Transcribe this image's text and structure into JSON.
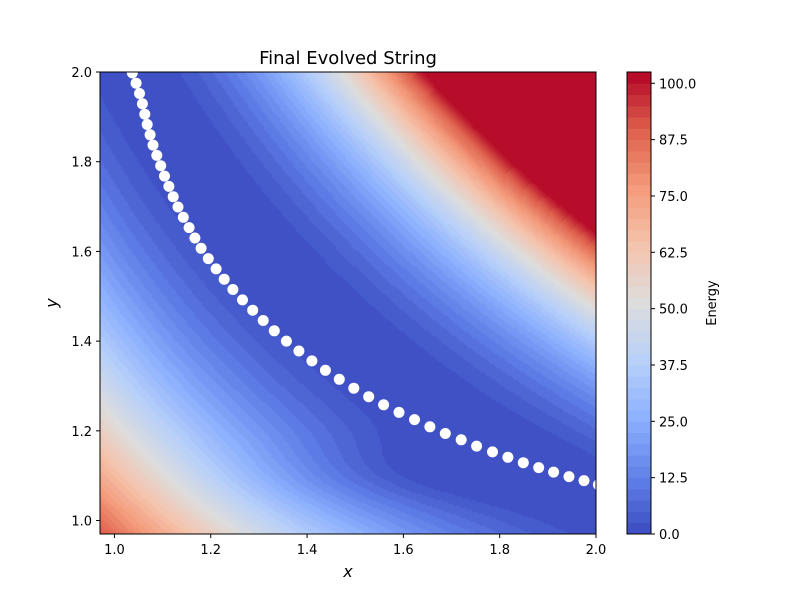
{
  "chart_data": {
    "type": "contour",
    "title": "Final Evolved String",
    "xlabel": "x",
    "ylabel": "y",
    "xlim": [
      0.97,
      2.0
    ],
    "ylim": [
      0.97,
      2.0
    ],
    "x_ticks": [
      "1.0",
      "1.2",
      "1.4",
      "1.6",
      "1.8",
      "2.0"
    ],
    "y_ticks": [
      "1.0",
      "1.2",
      "1.4",
      "1.6",
      "1.8",
      "2.0"
    ],
    "colorbar": {
      "label": "Energy",
      "colormap": "coolwarm",
      "range": [
        0,
        102.5
      ],
      "levels": 41,
      "ticks": [
        "0.0",
        "12.5",
        "25.0",
        "37.5",
        "50.0",
        "62.5",
        "75.0",
        "87.5",
        "100.0"
      ]
    },
    "string_points": {
      "count": 50,
      "color": "#ffffff",
      "x": [
        1.037,
        1.045,
        1.052,
        1.058,
        1.063,
        1.068,
        1.074,
        1.08,
        1.088,
        1.096,
        1.104,
        1.113,
        1.122,
        1.132,
        1.143,
        1.155,
        1.167,
        1.18,
        1.195,
        1.211,
        1.228,
        1.246,
        1.266,
        1.287,
        1.309,
        1.332,
        1.357,
        1.383,
        1.41,
        1.438,
        1.467,
        1.497,
        1.528,
        1.559,
        1.591,
        1.623,
        1.655,
        1.687,
        1.72,
        1.752,
        1.785,
        1.817,
        1.849,
        1.881,
        1.912,
        1.944,
        1.975,
        2.005,
        2.035,
        2.065
      ],
      "y": [
        1.998,
        1.975,
        1.952,
        1.929,
        1.906,
        1.883,
        1.86,
        1.837,
        1.814,
        1.791,
        1.768,
        1.745,
        1.722,
        1.699,
        1.676,
        1.653,
        1.63,
        1.607,
        1.584,
        1.561,
        1.538,
        1.515,
        1.492,
        1.469,
        1.446,
        1.423,
        1.4,
        1.378,
        1.356,
        1.335,
        1.315,
        1.295,
        1.276,
        1.258,
        1.241,
        1.225,
        1.209,
        1.194,
        1.18,
        1.166,
        1.153,
        1.141,
        1.129,
        1.118,
        1.108,
        1.098,
        1.089,
        1.08,
        1.072,
        1.065
      ]
    }
  }
}
